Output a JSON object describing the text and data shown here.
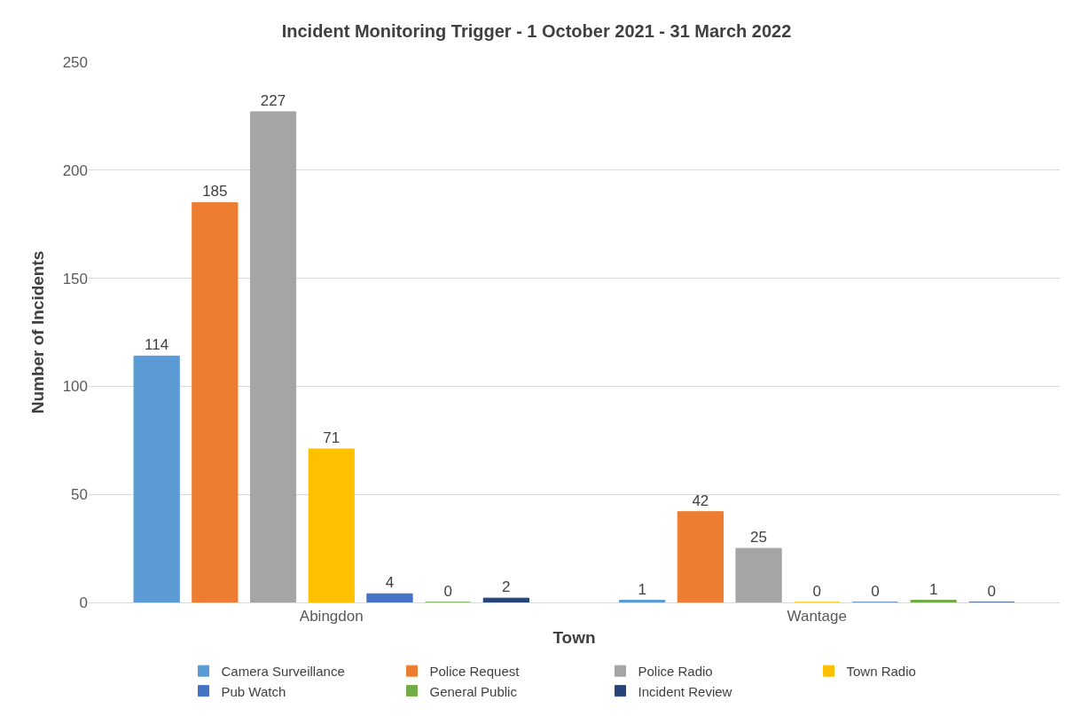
{
  "chart_data": {
    "type": "bar",
    "title": "Incident Monitoring Trigger - 1 October 2021 - 31 March 2022",
    "xlabel": "Town",
    "ylabel": "Number of Incidents",
    "categories": [
      "Abingdon",
      "Wantage"
    ],
    "series": [
      {
        "name": "Camera Surveillance",
        "color": "#5b9bd5",
        "values": [
          114,
          1
        ]
      },
      {
        "name": "Police Request",
        "color": "#ed7d31",
        "values": [
          185,
          42
        ]
      },
      {
        "name": "Police Radio",
        "color": "#a5a5a5",
        "values": [
          227,
          25
        ]
      },
      {
        "name": "Town Radio",
        "color": "#ffc000",
        "values": [
          71,
          0
        ]
      },
      {
        "name": "Pub Watch",
        "color": "#4472c4",
        "values": [
          4,
          0
        ]
      },
      {
        "name": "General Public",
        "color": "#70ad47",
        "values": [
          0,
          1
        ]
      },
      {
        "name": "Incident Review",
        "color": "#264478",
        "values": [
          2,
          0
        ]
      }
    ],
    "ylim": [
      0,
      250
    ],
    "yticks": [
      0,
      50,
      100,
      150,
      200,
      250
    ],
    "grid": "y",
    "legend": "bottom",
    "data_labels": true
  }
}
